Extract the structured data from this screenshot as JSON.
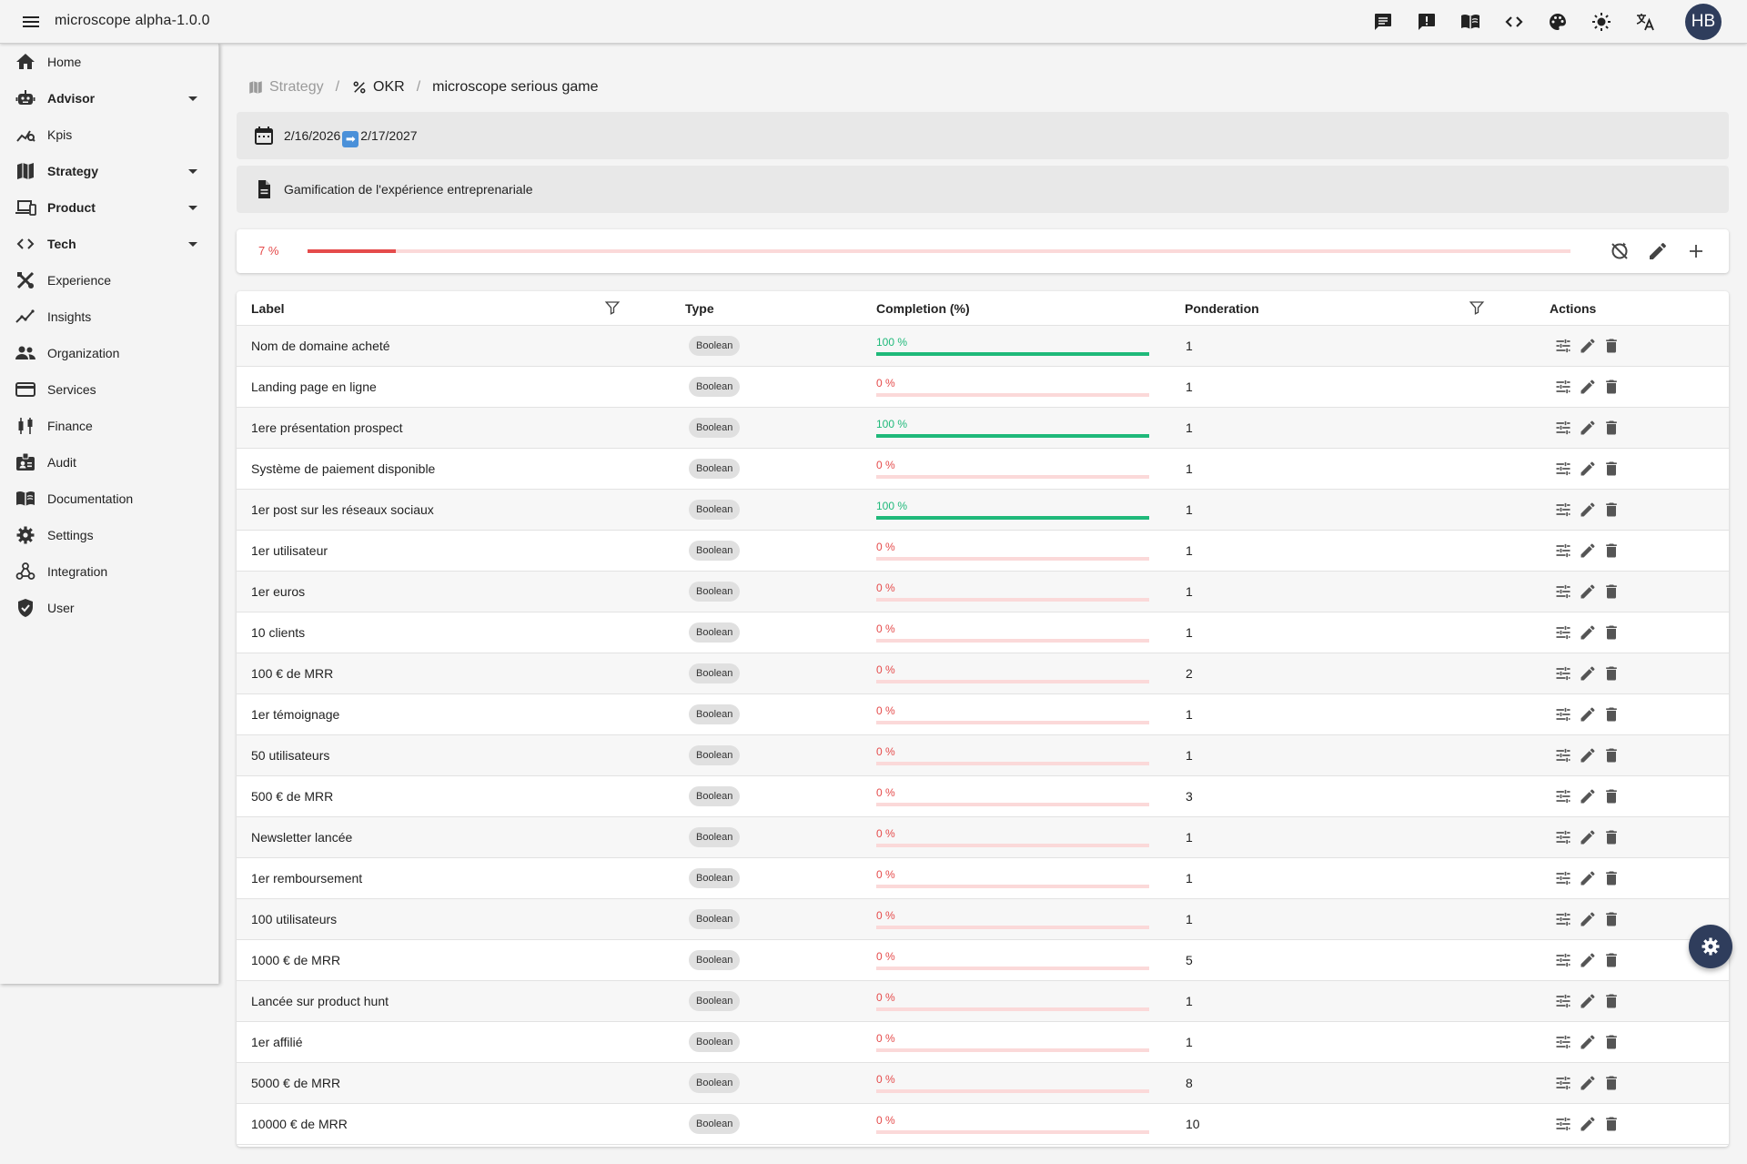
{
  "app": {
    "title": "microscope  alpha-1.0.0",
    "avatar_initials": "HB"
  },
  "toolbar_icons": [
    "chat-icon",
    "feedback-icon",
    "docs-book-icon",
    "code-icon",
    "palette-icon",
    "brightness-icon",
    "translate-icon"
  ],
  "sidebar": {
    "items": [
      {
        "label": "Home",
        "icon": "home-icon",
        "bold": false,
        "expandable": false
      },
      {
        "label": "Advisor",
        "icon": "robot-icon",
        "bold": true,
        "expandable": true
      },
      {
        "label": "Kpis",
        "icon": "analytics-icon",
        "bold": false,
        "expandable": false
      },
      {
        "label": "Strategy",
        "icon": "map-icon",
        "bold": true,
        "expandable": true
      },
      {
        "label": "Product",
        "icon": "devices-icon",
        "bold": true,
        "expandable": true
      },
      {
        "label": "Tech",
        "icon": "code-icon",
        "bold": true,
        "expandable": true
      },
      {
        "label": "Experience",
        "icon": "design-tools-icon",
        "bold": false,
        "expandable": false
      },
      {
        "label": "Insights",
        "icon": "trending-icon",
        "bold": false,
        "expandable": false
      },
      {
        "label": "Organization",
        "icon": "people-icon",
        "bold": false,
        "expandable": false
      },
      {
        "label": "Services",
        "icon": "card-icon",
        "bold": false,
        "expandable": false
      },
      {
        "label": "Finance",
        "icon": "candlestick-icon",
        "bold": false,
        "expandable": false
      },
      {
        "label": "Audit",
        "icon": "badge-icon",
        "bold": false,
        "expandable": false
      },
      {
        "label": "Documentation",
        "icon": "book-icon",
        "bold": false,
        "expandable": false
      },
      {
        "label": "Settings",
        "icon": "gear-icon",
        "bold": false,
        "expandable": false
      },
      {
        "label": "Integration",
        "icon": "webhook-icon",
        "bold": false,
        "expandable": false
      },
      {
        "label": "User",
        "icon": "shield-icon",
        "bold": false,
        "expandable": false
      }
    ]
  },
  "breadcrumb": {
    "strategy": "Strategy",
    "okr": "OKR",
    "current": "microscope serious game",
    "separator": "/"
  },
  "period": {
    "start": "2/16/2026",
    "arrow": "➡",
    "end": "2/17/2027"
  },
  "description": "Gamification de l'expérience entreprenariale",
  "overall": {
    "percent_text": "7 %",
    "value": 7
  },
  "colors": {
    "done": "#1fb97a",
    "not_done": "#e54b4b",
    "track": "#fbd9d9",
    "brand": "#2f3d5c"
  },
  "table": {
    "headers": {
      "label": "Label",
      "type": "Type",
      "completion": "Completion (%)",
      "ponderation": "Ponderation",
      "actions": "Actions"
    },
    "rows": [
      {
        "label": "Nom de domaine acheté",
        "type": "Boolean",
        "completion": 100,
        "completion_text": "100 %",
        "ponderation": "1"
      },
      {
        "label": "Landing page en ligne",
        "type": "Boolean",
        "completion": 0,
        "completion_text": "0 %",
        "ponderation": "1"
      },
      {
        "label": "1ere présentation prospect",
        "type": "Boolean",
        "completion": 100,
        "completion_text": "100 %",
        "ponderation": "1"
      },
      {
        "label": "Système de paiement disponible",
        "type": "Boolean",
        "completion": 0,
        "completion_text": "0 %",
        "ponderation": "1"
      },
      {
        "label": "1er post sur les réseaux sociaux",
        "type": "Boolean",
        "completion": 100,
        "completion_text": "100 %",
        "ponderation": "1"
      },
      {
        "label": "1er utilisateur",
        "type": "Boolean",
        "completion": 0,
        "completion_text": "0 %",
        "ponderation": "1"
      },
      {
        "label": "1er euros",
        "type": "Boolean",
        "completion": 0,
        "completion_text": "0 %",
        "ponderation": "1"
      },
      {
        "label": "10 clients",
        "type": "Boolean",
        "completion": 0,
        "completion_text": "0 %",
        "ponderation": "1"
      },
      {
        "label": "100 € de MRR",
        "type": "Boolean",
        "completion": 0,
        "completion_text": "0 %",
        "ponderation": "2"
      },
      {
        "label": "1er témoignage",
        "type": "Boolean",
        "completion": 0,
        "completion_text": "0 %",
        "ponderation": "1"
      },
      {
        "label": "50 utilisateurs",
        "type": "Boolean",
        "completion": 0,
        "completion_text": "0 %",
        "ponderation": "1"
      },
      {
        "label": "500 € de MRR",
        "type": "Boolean",
        "completion": 0,
        "completion_text": "0 %",
        "ponderation": "3"
      },
      {
        "label": "Newsletter lancée",
        "type": "Boolean",
        "completion": 0,
        "completion_text": "0 %",
        "ponderation": "1"
      },
      {
        "label": "1er remboursement",
        "type": "Boolean",
        "completion": 0,
        "completion_text": "0 %",
        "ponderation": "1"
      },
      {
        "label": "100 utilisateurs",
        "type": "Boolean",
        "completion": 0,
        "completion_text": "0 %",
        "ponderation": "1"
      },
      {
        "label": "1000 € de MRR",
        "type": "Boolean",
        "completion": 0,
        "completion_text": "0 %",
        "ponderation": "5"
      },
      {
        "label": "Lancée sur product hunt",
        "type": "Boolean",
        "completion": 0,
        "completion_text": "0 %",
        "ponderation": "1"
      },
      {
        "label": "1er affilié",
        "type": "Boolean",
        "completion": 0,
        "completion_text": "0 %",
        "ponderation": "1"
      },
      {
        "label": "5000 € de MRR",
        "type": "Boolean",
        "completion": 0,
        "completion_text": "0 %",
        "ponderation": "8"
      },
      {
        "label": "10000 € de MRR",
        "type": "Boolean",
        "completion": 0,
        "completion_text": "0 %",
        "ponderation": "10"
      }
    ]
  }
}
